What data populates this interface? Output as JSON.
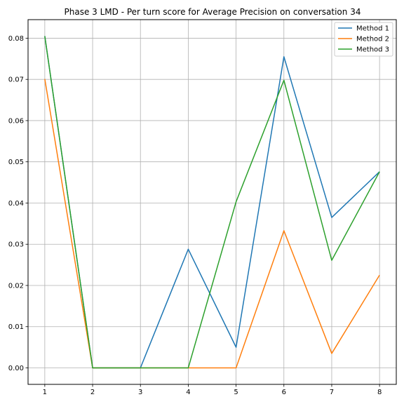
{
  "chart_data": {
    "type": "line",
    "title": "Phase 3 LMD - Per turn score for Average Precision on conversation 34",
    "xlabel": "",
    "ylabel": "",
    "x": [
      1,
      2,
      3,
      4,
      5,
      6,
      7,
      8
    ],
    "x_tick_labels": [
      "1",
      "2",
      "3",
      "4",
      "5",
      "6",
      "7",
      "8"
    ],
    "y_ticks": [
      0.0,
      0.01,
      0.02,
      0.03,
      0.04,
      0.05,
      0.06,
      0.07,
      0.08
    ],
    "y_tick_labels": [
      "0.00",
      "0.01",
      "0.02",
      "0.03",
      "0.04",
      "0.05",
      "0.06",
      "0.07",
      "0.08"
    ],
    "xlim": [
      0.65,
      8.35
    ],
    "ylim": [
      -0.004,
      0.0845
    ],
    "grid": true,
    "legend_position": "top-right",
    "series": [
      {
        "name": "Method 1",
        "color": "#1f77b4",
        "values": [
          0.0805,
          0.0,
          0.0,
          0.0288,
          0.005,
          0.0755,
          0.0365,
          0.0476
        ]
      },
      {
        "name": "Method 2",
        "color": "#ff7f0e",
        "values": [
          0.0701,
          0.0,
          0.0,
          0.0,
          0.0,
          0.0333,
          0.0035,
          0.0225
        ]
      },
      {
        "name": "Method 3",
        "color": "#2ca02c",
        "values": [
          0.0805,
          0.0,
          0.0,
          0.0,
          0.0403,
          0.0698,
          0.0261,
          0.0476
        ]
      }
    ]
  }
}
